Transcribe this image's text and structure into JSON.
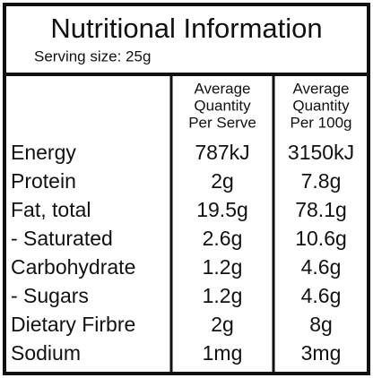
{
  "header": {
    "title": "Nutritional Information",
    "serving": "Serving size: 25g"
  },
  "table": {
    "columns": [
      [
        "Average",
        "Quantity",
        "Per Serve"
      ],
      [
        "Average",
        "Quantity",
        "Per 100g"
      ]
    ],
    "rows": [
      [
        "Energy",
        "787kJ",
        "3150kJ"
      ],
      [
        "Protein",
        "2g",
        "7.8g"
      ],
      [
        "Fat, total",
        "19.5g",
        "78.1g"
      ],
      [
        "- Saturated",
        "2.6g",
        "10.6g"
      ],
      [
        "Carbohydrate",
        "1.2g",
        "4.6g"
      ],
      [
        "- Sugars",
        "1.2g",
        "4.6g"
      ],
      [
        "Dietary Firbre",
        "2g",
        "8g"
      ],
      [
        "Sodium",
        "1mg",
        "3mg"
      ]
    ]
  }
}
